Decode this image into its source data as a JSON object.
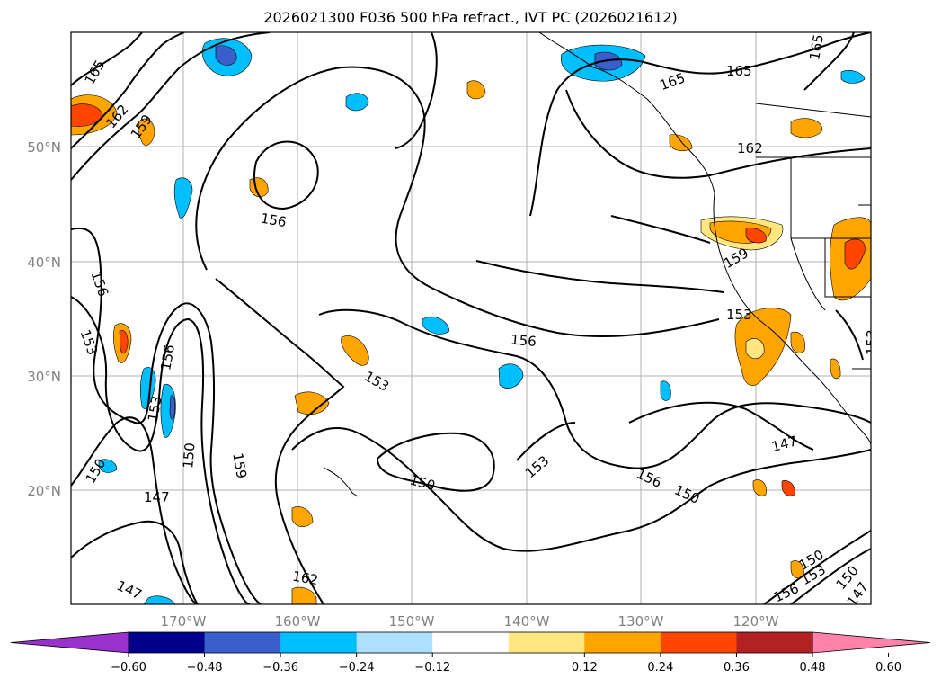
{
  "title": "2026021300 F036 500 hPa refract., IVT PC (2026021612)",
  "lat_labels": [
    "50°N",
    "40°N",
    "30°N",
    "20°N"
  ],
  "lon_labels": [
    "170°W",
    "160°W",
    "150°W",
    "140°W",
    "130°W",
    "120°W"
  ],
  "contour_labels": [
    "165",
    "162",
    "159",
    "156",
    "153",
    "150",
    "147"
  ],
  "colorbar": {
    "ticks": [
      "−0.60",
      "−0.48",
      "−0.36",
      "−0.24",
      "−0.12",
      "0.12",
      "0.24",
      "0.36",
      "0.48",
      "0.60"
    ],
    "colors": [
      "#9932CC",
      "#00008B",
      "#3A5FCD",
      "#00BFFF",
      "#ADDFFF",
      "#FFFFFF",
      "#FFE680",
      "#FFA500",
      "#FF4500",
      "#B22222",
      "#FF82AB"
    ]
  }
}
